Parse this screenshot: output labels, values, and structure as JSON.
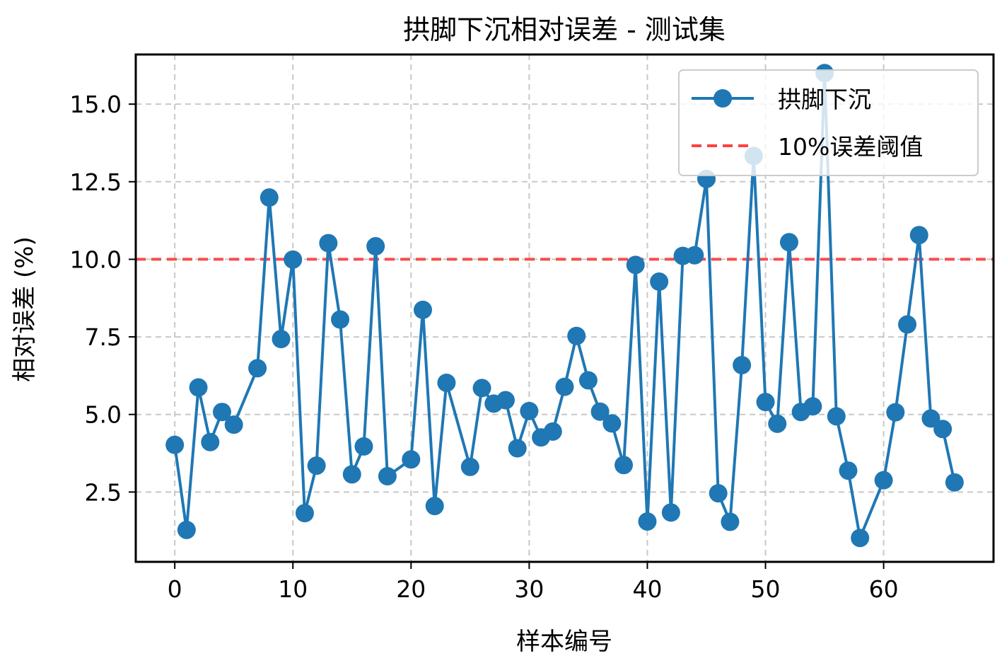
{
  "chart_data": {
    "type": "line",
    "title": "拱脚下沉相对误差 - 测试集",
    "xlabel": "样本编号",
    "ylabel": "相对误差 (%)",
    "xlim": [
      -3.3,
      69.3
    ],
    "ylim": [
      0.25,
      16.6
    ],
    "xticks": [
      0,
      10,
      20,
      30,
      40,
      50,
      60
    ],
    "yticks": [
      2.5,
      5.0,
      7.5,
      10.0,
      12.5,
      15.0
    ],
    "xtick_labels": [
      "0",
      "10",
      "20",
      "30",
      "40",
      "50",
      "60"
    ],
    "ytick_labels": [
      "2.5",
      "5.0",
      "7.5",
      "10.0",
      "12.5",
      "15.0"
    ],
    "grid": true,
    "legend_position": "top-right",
    "series": [
      {
        "name": "拱脚下沉",
        "color": "#1f77b4",
        "marker": "circle",
        "points": [
          [
            0,
            4.02
          ],
          [
            1,
            1.28
          ],
          [
            2,
            5.87
          ],
          [
            3,
            4.11
          ],
          [
            4,
            5.08
          ],
          [
            5,
            4.67
          ],
          [
            7,
            6.49
          ],
          [
            8,
            11.99
          ],
          [
            9,
            7.43
          ],
          [
            10,
            9.99
          ],
          [
            11,
            1.82
          ],
          [
            12,
            3.35
          ],
          [
            13,
            10.52
          ],
          [
            14,
            8.06
          ],
          [
            15,
            3.07
          ],
          [
            16,
            3.97
          ],
          [
            17,
            10.42
          ],
          [
            18,
            3.01
          ],
          [
            20,
            3.55
          ],
          [
            21,
            8.37
          ],
          [
            22,
            2.05
          ],
          [
            23,
            6.02
          ],
          [
            25,
            3.31
          ],
          [
            26,
            5.85
          ],
          [
            27,
            5.35
          ],
          [
            28,
            5.46
          ],
          [
            29,
            3.91
          ],
          [
            30,
            5.11
          ],
          [
            31,
            4.26
          ],
          [
            32,
            4.45
          ],
          [
            33,
            5.89
          ],
          [
            34,
            7.53
          ],
          [
            35,
            6.1
          ],
          [
            36,
            5.09
          ],
          [
            37,
            4.71
          ],
          [
            38,
            3.37
          ],
          [
            39,
            9.82
          ],
          [
            40,
            1.55
          ],
          [
            41,
            9.28
          ],
          [
            42,
            1.84
          ],
          [
            43,
            10.11
          ],
          [
            44,
            10.13
          ],
          [
            45,
            12.59
          ],
          [
            46,
            2.46
          ],
          [
            47,
            1.54
          ],
          [
            48,
            6.59
          ],
          [
            49,
            13.33
          ],
          [
            50,
            5.4
          ],
          [
            51,
            4.7
          ],
          [
            52,
            10.55
          ],
          [
            53,
            5.08
          ],
          [
            54,
            5.26
          ],
          [
            55,
            16.0
          ],
          [
            56,
            4.94
          ],
          [
            57,
            3.19
          ],
          [
            58,
            1.02
          ],
          [
            60,
            2.88
          ],
          [
            61,
            5.07
          ],
          [
            62,
            7.9
          ],
          [
            63,
            10.78
          ],
          [
            64,
            4.87
          ],
          [
            65,
            4.53
          ],
          [
            66,
            2.81
          ]
        ]
      }
    ],
    "threshold": {
      "name": "10%误差阈值",
      "value": 10.0,
      "color": "#ff4040",
      "style": "dashed"
    }
  }
}
